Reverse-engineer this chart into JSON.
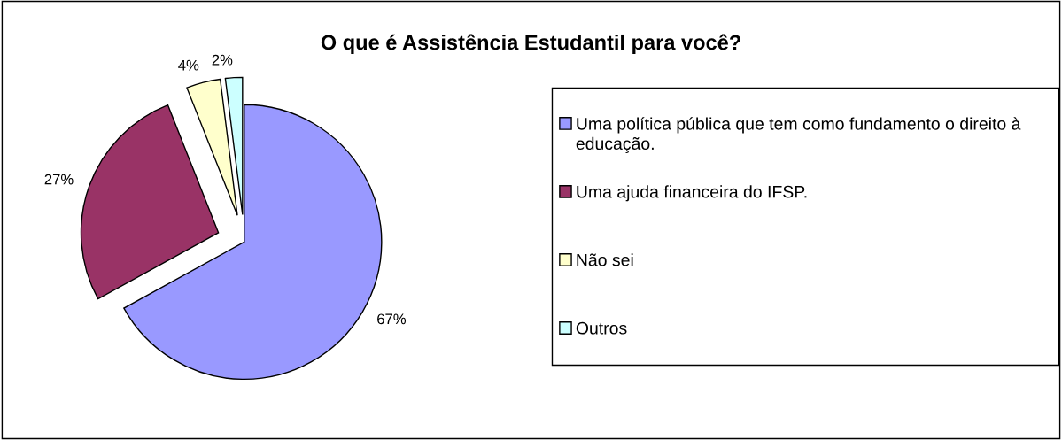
{
  "chart_data": {
    "type": "pie",
    "title": "O que é Assistência Estudantil para você?",
    "categories": [
      "Uma política pública que tem como fundamento o direito à educação.",
      "Uma ajuda financeira do IFSP.",
      "Não sei",
      "Outros"
    ],
    "values": [
      67,
      27,
      4,
      2
    ],
    "colors": [
      "#9999ff",
      "#993366",
      "#ffffcc",
      "#ccffff"
    ],
    "value_labels": [
      "67%",
      "27%",
      "4%",
      "2%"
    ],
    "legend": "right"
  }
}
